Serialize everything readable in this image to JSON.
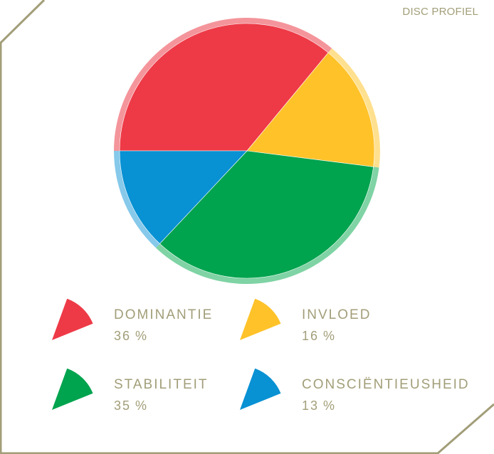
{
  "title": "DISC PROFIEL",
  "frame_color": "#a29e79",
  "chart_data": {
    "type": "pie",
    "title": "DISC PROFIEL",
    "slices": [
      {
        "label": "DOMINANTIE",
        "value": 36,
        "color": "#ee3a47",
        "halo": "#f4959b"
      },
      {
        "label": "INVLOED",
        "value": 16,
        "color": "#ffc229",
        "halo": "#ffe08f"
      },
      {
        "label": "STABILITEIT",
        "value": 35,
        "color": "#00a34e",
        "halo": "#7fd3a4"
      },
      {
        "label": "CONSCIËNTIEUSHEID",
        "value": 13,
        "color": "#0891d3",
        "halo": "#86c9ea"
      }
    ],
    "unit": "%"
  },
  "legend": [
    {
      "label": "DOMINANTIE",
      "value": "36",
      "unit": "%"
    },
    {
      "label": "INVLOED",
      "value": "16",
      "unit": "%"
    },
    {
      "label": "STABILITEIT",
      "value": "35",
      "unit": "%"
    },
    {
      "label": "CONSCIËNTIEUSHEID",
      "value": "13",
      "unit": "%"
    }
  ]
}
